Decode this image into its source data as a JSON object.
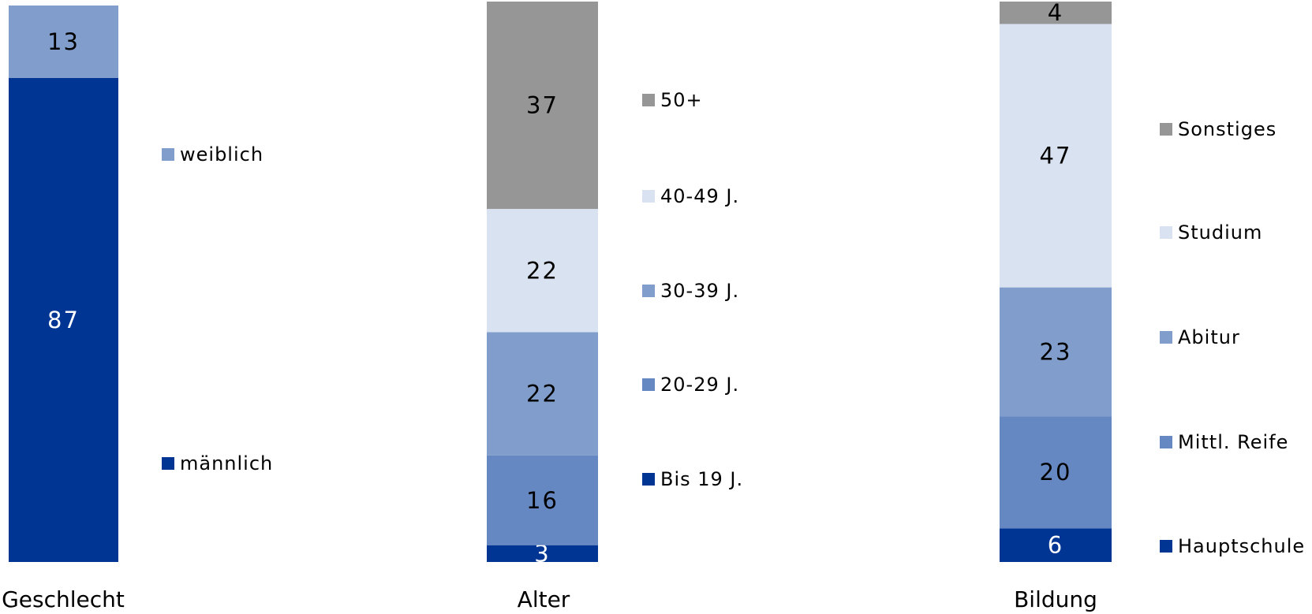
{
  "chart_data": {
    "type": "bar",
    "stacked": true,
    "unit": "percent",
    "categories": [
      "Geschlecht",
      "Alter",
      "Bildung"
    ],
    "groups": [
      {
        "category": "Geschlecht",
        "segments": [
          {
            "name": "männlich",
            "value": 87,
            "color": "#003594",
            "label_color": "#ffffff"
          },
          {
            "name": "weiblich",
            "value": 13,
            "color": "#809dcb",
            "label_color": "#000000"
          }
        ]
      },
      {
        "category": "Alter",
        "segments": [
          {
            "name": "Bis 19 J.",
            "value": 3,
            "color": "#003594",
            "label_color": "#ffffff"
          },
          {
            "name": "20-29 J.",
            "value": 16,
            "color": "#6688c2",
            "label_color": "#000000"
          },
          {
            "name": "30-39 J.",
            "value": 22,
            "color": "#809dcb",
            "label_color": "#000000"
          },
          {
            "name": "40-49 J.",
            "value": 22,
            "color": "#d9e2f1",
            "label_color": "#000000"
          },
          {
            "name": "50+",
            "value": 37,
            "color": "#969696",
            "label_color": "#000000"
          }
        ]
      },
      {
        "category": "Bildung",
        "segments": [
          {
            "name": "Hauptschule",
            "value": 6,
            "color": "#003594",
            "label_color": "#ffffff"
          },
          {
            "name": "Mittl. Reife",
            "value": 20,
            "color": "#6688c2",
            "label_color": "#000000"
          },
          {
            "name": "Abitur",
            "value": 23,
            "color": "#809dcb",
            "label_color": "#000000"
          },
          {
            "name": "Studium",
            "value": 47,
            "color": "#d9e2f1",
            "label_color": "#000000"
          },
          {
            "name": "Sonstiges",
            "value": 4,
            "color": "#969696",
            "label_color": "#000000"
          }
        ]
      }
    ],
    "legend_placement": "right of each bar",
    "grid": false
  }
}
